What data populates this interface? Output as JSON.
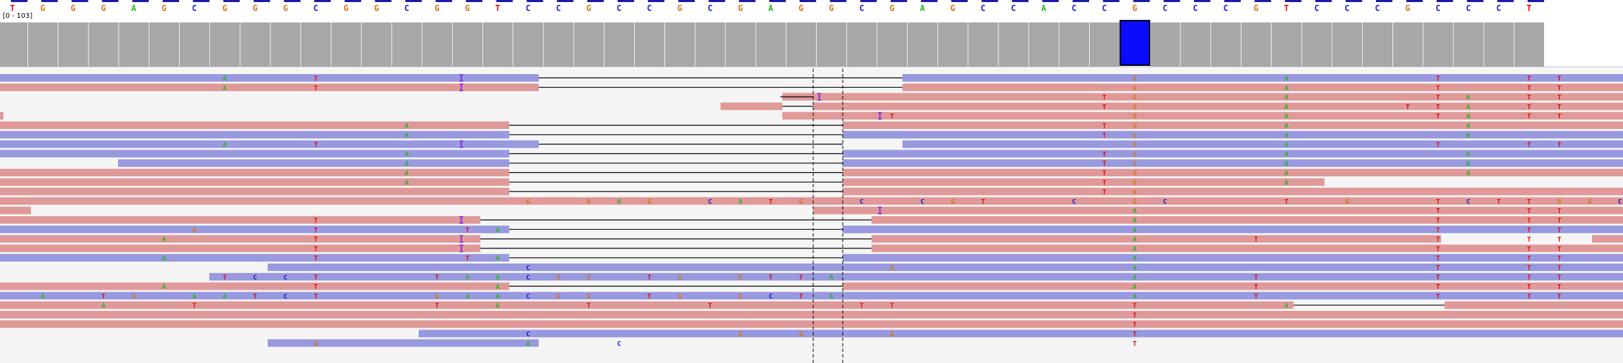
{
  "colors": {
    "A": "#2bb52b",
    "C": "#1f1fd0",
    "G": "#d2781e",
    "T": "#e01010",
    "I": "#8a2be2",
    "forward": "#9999e0",
    "reverse": "#e09999",
    "coverage": "#a8a8a8",
    "coverage_highlight": "#0b0bff"
  },
  "reference": {
    "bases": [
      "T",
      "G",
      "G",
      "G",
      "A",
      "G",
      "C",
      "G",
      "G",
      "G",
      "C",
      "G",
      "G",
      "C",
      "G",
      "G",
      "T",
      "C",
      "C",
      "G",
      "C",
      "C",
      "G",
      "C",
      "G",
      "A",
      "G",
      "G",
      "C",
      "G",
      "A",
      "G",
      "C",
      "C",
      "A",
      "C",
      "C",
      "G",
      "C",
      "C",
      "C",
      "G",
      "T",
      "C",
      "C",
      "C",
      "G",
      "C",
      "C",
      "C",
      "T"
    ],
    "highlight_index": 37
  },
  "coverage_track": {
    "range_label": "[0 - 103]"
  },
  "alignments": {
    "rows": [
      {
        "mm": [
          [
            "A",
            7
          ],
          [
            "T",
            10
          ],
          [
            "I",
            14.8
          ],
          [
            "G",
            37
          ],
          [
            "A",
            42
          ],
          [
            "T",
            47
          ],
          [
            "T",
            50
          ],
          [
            "T",
            51
          ]
        ]
      },
      {
        "mm": [
          [
            "A",
            7
          ],
          [
            "T",
            10
          ],
          [
            "I",
            14.8
          ],
          [
            "G",
            37
          ],
          [
            "A",
            42
          ],
          [
            "T",
            47
          ],
          [
            "T",
            50
          ],
          [
            "T",
            51
          ]
        ]
      },
      {
        "mm": [
          [
            "I",
            26.6
          ],
          [
            "T",
            36
          ],
          [
            "G",
            37
          ],
          [
            "A",
            42
          ],
          [
            "A",
            48
          ],
          [
            "T",
            47
          ],
          [
            "T",
            50
          ],
          [
            "T",
            51
          ]
        ]
      },
      {
        "mm": [
          [
            "T",
            36
          ],
          [
            "G",
            37
          ],
          [
            "A",
            42
          ],
          [
            "T",
            46
          ],
          [
            "A",
            48
          ],
          [
            "T",
            47
          ],
          [
            "T",
            50
          ],
          [
            "T",
            51
          ]
        ]
      },
      {
        "mm": [
          [
            "I",
            28.6
          ],
          [
            "T",
            29
          ],
          [
            "G",
            37
          ],
          [
            "A",
            42
          ],
          [
            "T",
            47
          ],
          [
            "A",
            48
          ],
          [
            "T",
            50
          ],
          [
            "T",
            51
          ]
        ]
      },
      {
        "mm": [
          [
            "A",
            13
          ],
          [
            "T",
            36
          ],
          [
            "G",
            37
          ],
          [
            "A",
            42
          ],
          [
            "A",
            48
          ]
        ]
      },
      {
        "mm": [
          [
            "A",
            13
          ],
          [
            "T",
            36
          ],
          [
            "G",
            37
          ],
          [
            "A",
            42
          ],
          [
            "A",
            48
          ]
        ]
      },
      {
        "mm": [
          [
            "A",
            7
          ],
          [
            "T",
            10
          ],
          [
            "I",
            14.8
          ],
          [
            "G",
            37
          ],
          [
            "A",
            42
          ],
          [
            "T",
            47
          ],
          [
            "T",
            50
          ],
          [
            "T",
            51
          ]
        ]
      },
      {
        "mm": [
          [
            "A",
            13
          ],
          [
            "T",
            36
          ],
          [
            "G",
            37
          ],
          [
            "A",
            42
          ],
          [
            "A",
            48
          ]
        ]
      },
      {
        "mm": [
          [
            "A",
            13
          ],
          [
            "T",
            36
          ],
          [
            "G",
            37
          ],
          [
            "A",
            42
          ],
          [
            "A",
            48
          ]
        ]
      },
      {
        "mm": [
          [
            "A",
            13
          ],
          [
            "T",
            36
          ],
          [
            "G",
            37
          ],
          [
            "A",
            42
          ],
          [
            "A",
            48
          ]
        ]
      },
      {
        "mm": [
          [
            "A",
            13
          ],
          [
            "T",
            36
          ],
          [
            "G",
            37
          ],
          [
            "A",
            42
          ]
        ]
      },
      {
        "mm": [
          [
            "T",
            36
          ],
          [
            "G",
            37
          ]
        ]
      },
      {
        "mm": [
          [
            "G",
            17
          ],
          [
            "G",
            19
          ],
          [
            "A",
            20
          ],
          [
            "G",
            21
          ],
          [
            "C",
            23
          ],
          [
            "A",
            24
          ],
          [
            "T",
            25
          ],
          [
            "G",
            26
          ],
          [
            "C",
            28
          ],
          [
            "C",
            30
          ],
          [
            "G",
            31
          ],
          [
            "T",
            32
          ],
          [
            "C",
            35
          ],
          [
            "G",
            37
          ],
          [
            "C",
            38
          ],
          [
            "T",
            42
          ],
          [
            "G",
            44
          ],
          [
            "T",
            47
          ],
          [
            "C",
            48
          ],
          [
            "T",
            49
          ],
          [
            "T",
            50
          ],
          [
            "G",
            51
          ],
          [
            "G",
            52
          ],
          [
            "C",
            53
          ]
        ]
      },
      {
        "mm": [
          [
            "I",
            28.6
          ],
          [
            "A",
            37
          ],
          [
            "T",
            47
          ],
          [
            "T",
            50
          ],
          [
            "T",
            51
          ]
        ]
      },
      {
        "mm": [
          [
            "T",
            10
          ],
          [
            "I",
            14.8
          ],
          [
            "A",
            37
          ],
          [
            "T",
            47
          ],
          [
            "T",
            50
          ],
          [
            "T",
            51
          ]
        ]
      },
      {
        "mm": [
          [
            "G",
            6
          ],
          [
            "T",
            10
          ],
          [
            "T",
            15
          ],
          [
            "A",
            16
          ],
          [
            "A",
            37
          ],
          [
            "T",
            47
          ],
          [
            "T",
            50
          ],
          [
            "T",
            51
          ]
        ]
      },
      {
        "mm": [
          [
            "A",
            5
          ],
          [
            "T",
            10
          ],
          [
            "I",
            14.8
          ],
          [
            "A",
            37
          ],
          [
            "T",
            41
          ],
          [
            "T",
            47
          ],
          [
            "T",
            50
          ],
          [
            "T",
            51
          ]
        ]
      },
      {
        "mm": [
          [
            "T",
            10
          ],
          [
            "I",
            14.8
          ],
          [
            "A",
            37
          ],
          [
            "T",
            47
          ],
          [
            "T",
            50
          ],
          [
            "T",
            51
          ]
        ]
      },
      {
        "mm": [
          [
            "A",
            5
          ],
          [
            "T",
            10
          ],
          [
            "T",
            15
          ],
          [
            "A",
            16
          ],
          [
            "A",
            37
          ],
          [
            "T",
            47
          ],
          [
            "T",
            50
          ],
          [
            "T",
            51
          ]
        ]
      },
      {
        "mm": [
          [
            "C",
            17
          ],
          [
            "G",
            29
          ],
          [
            "A",
            37
          ],
          [
            "T",
            47
          ],
          [
            "T",
            50
          ],
          [
            "T",
            51
          ]
        ]
      },
      {
        "mm": [
          [
            "T",
            7
          ],
          [
            "C",
            8
          ],
          [
            "C",
            9
          ],
          [
            "T",
            10
          ],
          [
            "T",
            14
          ],
          [
            "A",
            15
          ],
          [
            "A",
            16
          ],
          [
            "C",
            17
          ],
          [
            "G",
            18
          ],
          [
            "G",
            19
          ],
          [
            "T",
            21
          ],
          [
            "G",
            22
          ],
          [
            "G",
            24
          ],
          [
            "T",
            25
          ],
          [
            "T",
            26
          ],
          [
            "A",
            27
          ],
          [
            "A",
            37
          ],
          [
            "T",
            41
          ],
          [
            "T",
            47
          ],
          [
            "T",
            50
          ],
          [
            "T",
            51
          ]
        ]
      },
      {
        "mm": [
          [
            "A",
            5
          ],
          [
            "T",
            10
          ],
          [
            "A",
            16
          ],
          [
            "A",
            37
          ],
          [
            "T",
            41
          ],
          [
            "T",
            47
          ],
          [
            "T",
            50
          ],
          [
            "T",
            51
          ]
        ]
      },
      {
        "mm": [
          [
            "A",
            1
          ],
          [
            "T",
            3
          ],
          [
            "G",
            4
          ],
          [
            "A",
            6
          ],
          [
            "A",
            7
          ],
          [
            "T",
            8
          ],
          [
            "C",
            9
          ],
          [
            "T",
            10
          ],
          [
            "G",
            14
          ],
          [
            "A",
            15
          ],
          [
            "A",
            16
          ],
          [
            "C",
            17
          ],
          [
            "G",
            18
          ],
          [
            "G",
            19
          ],
          [
            "T",
            21
          ],
          [
            "G",
            22
          ],
          [
            "G",
            24
          ],
          [
            "C",
            25
          ],
          [
            "T",
            26
          ],
          [
            "A",
            27
          ],
          [
            "A",
            37
          ],
          [
            "T",
            41
          ],
          [
            "T",
            47
          ],
          [
            "T",
            50
          ],
          [
            "T",
            51
          ]
        ]
      },
      {
        "mm": [
          [
            "A",
            3
          ],
          [
            "T",
            6
          ],
          [
            "T",
            14
          ],
          [
            "A",
            16
          ],
          [
            "T",
            19
          ],
          [
            "T",
            23
          ],
          [
            "T",
            28
          ],
          [
            "T",
            29
          ],
          [
            "T",
            37
          ],
          [
            "A",
            42
          ]
        ]
      },
      {
        "mm": [
          [
            "T",
            37
          ]
        ]
      },
      {
        "mm": [
          [
            "T",
            37
          ]
        ]
      },
      {
        "mm": [
          [
            "C",
            17
          ],
          [
            "G",
            24
          ],
          [
            "G",
            26
          ],
          [
            "G",
            29
          ],
          [
            "T",
            37
          ]
        ]
      },
      {
        "mm": [
          [
            "G",
            10
          ],
          [
            "A",
            17
          ],
          [
            "C",
            20
          ],
          [
            "T",
            37
          ]
        ]
      }
    ]
  }
}
